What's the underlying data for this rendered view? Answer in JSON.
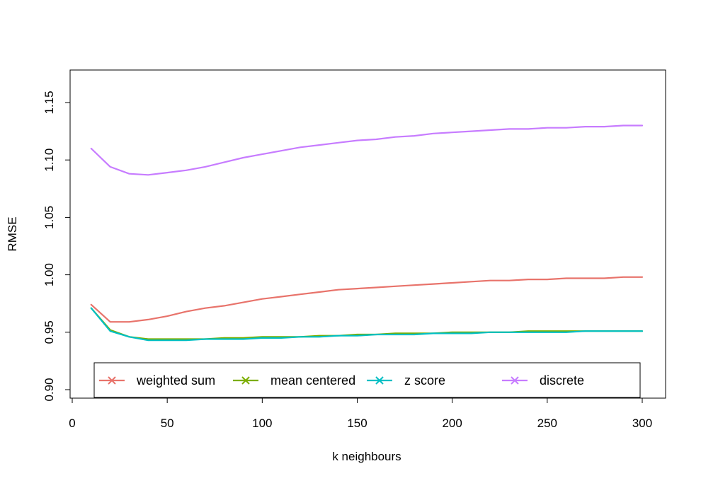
{
  "chart_data": {
    "type": "line",
    "title": "",
    "xlabel": "k neighbours",
    "ylabel": "RMSE",
    "xlim": [
      0,
      300
    ],
    "ylim": [
      0.9,
      1.15
    ],
    "x_ticks": [
      0,
      50,
      100,
      150,
      200,
      250,
      300
    ],
    "y_ticks": [
      0.9,
      0.95,
      1.0,
      1.05,
      1.1,
      1.15
    ],
    "x_tick_labels": [
      "0",
      "50",
      "100",
      "150",
      "200",
      "250",
      "300"
    ],
    "y_tick_labels": [
      "0.90",
      "0.95",
      "1.00",
      "1.05",
      "1.10",
      "1.15"
    ],
    "grid": false,
    "legend_position": "bottom",
    "x": [
      10,
      20,
      30,
      40,
      50,
      60,
      70,
      80,
      90,
      100,
      110,
      120,
      130,
      140,
      150,
      160,
      170,
      180,
      190,
      200,
      210,
      220,
      230,
      240,
      250,
      260,
      270,
      280,
      290,
      300
    ],
    "series": [
      {
        "name": "weighted sum",
        "color": "#E8736B",
        "values": [
          0.974,
          0.959,
          0.959,
          0.961,
          0.964,
          0.968,
          0.971,
          0.973,
          0.976,
          0.979,
          0.981,
          0.983,
          0.985,
          0.987,
          0.988,
          0.989,
          0.99,
          0.991,
          0.992,
          0.993,
          0.994,
          0.995,
          0.995,
          0.996,
          0.996,
          0.997,
          0.997,
          0.997,
          0.998,
          0.998
        ]
      },
      {
        "name": "mean centered",
        "color": "#7CAE00",
        "values": [
          0.971,
          0.952,
          0.946,
          0.944,
          0.944,
          0.944,
          0.944,
          0.945,
          0.945,
          0.946,
          0.946,
          0.946,
          0.947,
          0.947,
          0.948,
          0.948,
          0.949,
          0.949,
          0.949,
          0.95,
          0.95,
          0.95,
          0.95,
          0.951,
          0.951,
          0.951,
          0.951,
          0.951,
          0.951,
          0.951
        ]
      },
      {
        "name": "z score",
        "color": "#00BFC4",
        "values": [
          0.971,
          0.951,
          0.946,
          0.943,
          0.943,
          0.943,
          0.944,
          0.944,
          0.944,
          0.945,
          0.945,
          0.946,
          0.946,
          0.947,
          0.947,
          0.948,
          0.948,
          0.948,
          0.949,
          0.949,
          0.949,
          0.95,
          0.95,
          0.95,
          0.95,
          0.95,
          0.951,
          0.951,
          0.951,
          0.951
        ]
      },
      {
        "name": "discrete",
        "color": "#C77CFF",
        "values": [
          1.11,
          1.094,
          1.088,
          1.087,
          1.089,
          1.091,
          1.094,
          1.098,
          1.102,
          1.105,
          1.108,
          1.111,
          1.113,
          1.115,
          1.117,
          1.118,
          1.12,
          1.121,
          1.123,
          1.124,
          1.125,
          1.126,
          1.127,
          1.127,
          1.128,
          1.128,
          1.129,
          1.129,
          1.13,
          1.13
        ]
      }
    ]
  }
}
